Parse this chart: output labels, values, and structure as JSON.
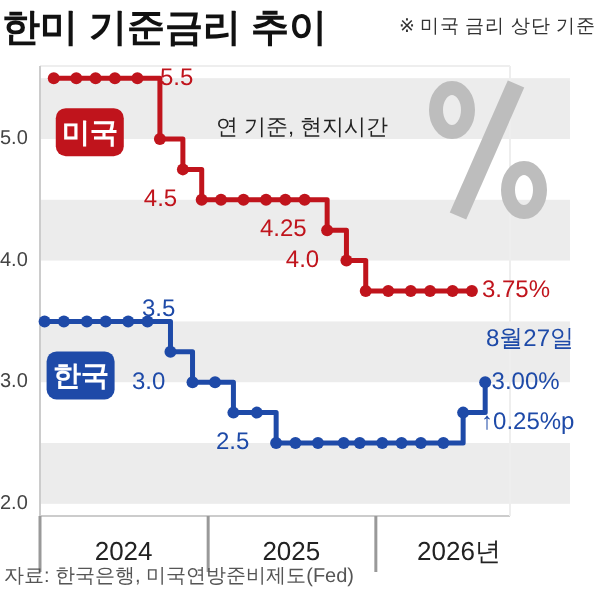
{
  "chart_data": {
    "type": "step",
    "title": "한미 기준금리 추이",
    "subtitle": "※ 미국 금리 상단 기준",
    "xlim": [
      "2024-01-01",
      "2026-10-20"
    ],
    "ylim": [
      1.9,
      5.6
    ],
    "yticks": [
      {
        "value": 2,
        "label": "2.0"
      },
      {
        "value": 3,
        "label": "3.0"
      },
      {
        "value": 4,
        "label": "4.0"
      },
      {
        "value": 5,
        "label": "5.0"
      }
    ],
    "xticks": [
      {
        "value": "2024-01-01",
        "label": null
      },
      {
        "value": "2024-07-01",
        "label": "2024"
      },
      {
        "value": "2025-01-01",
        "label": null
      },
      {
        "value": "2025-07-01",
        "label": "2025"
      },
      {
        "value": "2026-01-01",
        "label": null
      },
      {
        "value": "2026-07-01",
        "label": "2026년"
      }
    ],
    "marker": "circle",
    "grid": false,
    "bands": [
      {
        "axis": "y",
        "from": 2.0,
        "to": 2.5,
        "color": "#ececec"
      },
      {
        "axis": "y",
        "from": 3.0,
        "to": 3.5,
        "color": "#ececec"
      },
      {
        "axis": "y",
        "from": 4.0,
        "to": 4.5,
        "color": "#ececec"
      },
      {
        "axis": "y",
        "from": 5.0,
        "to": 5.5,
        "color": "#ececec"
      }
    ],
    "series": [
      {
        "name": "미국",
        "color": "#c0141c",
        "x": [
          "2024-01-31",
          "2024-03-20",
          "2024-05-01",
          "2024-06-12",
          "2024-07-31",
          "2024-09-18",
          "2024-11-07",
          "2024-12-18",
          "2025-01-29",
          "2025-03-19",
          "2025-05-07",
          "2025-06-18",
          "2025-07-30",
          "2025-09-17",
          "2025-10-29",
          "2025-12-10",
          "2026-01-28",
          "2026-03-18",
          "2026-04-29",
          "2026-06-17",
          "2026-07-29"
        ],
        "values": [
          5.5,
          5.5,
          5.5,
          5.5,
          5.5,
          5.0,
          4.75,
          4.5,
          4.5,
          4.5,
          4.5,
          4.5,
          4.5,
          4.25,
          4.0,
          3.75,
          3.75,
          3.75,
          3.75,
          3.75,
          3.75
        ]
      },
      {
        "name": "한국",
        "color": "#1e4aa8",
        "x": [
          "2024-01-11",
          "2024-02-22",
          "2024-04-12",
          "2024-05-23",
          "2024-07-11",
          "2024-08-22",
          "2024-10-11",
          "2024-11-28",
          "2025-01-16",
          "2025-02-25",
          "2025-04-17",
          "2025-05-29",
          "2025-07-10",
          "2025-08-28",
          "2025-10-23",
          "2025-11-27",
          "2026-01-15",
          "2026-02-26",
          "2026-04-09",
          "2026-05-28",
          "2026-07-10",
          "2026-08-27"
        ],
        "values": [
          3.5,
          3.5,
          3.5,
          3.5,
          3.5,
          3.5,
          3.25,
          3.0,
          3.0,
          2.75,
          2.75,
          2.5,
          2.5,
          2.5,
          2.5,
          2.5,
          2.5,
          2.5,
          2.5,
          2.5,
          2.75,
          3.0
        ]
      }
    ],
    "annotations": [
      {
        "text": "5.5",
        "x": "2024-09-18",
        "y": 5.5
      },
      {
        "text": "4.5",
        "x": "2024-08-14",
        "y": 4.5
      },
      "4.25",
      {
        "text": "4.0",
        "x": "2025-06-19",
        "y": 4.0
      },
      {
        "text": "3.75%",
        "x": "2026-08-20",
        "y": 3.75
      },
      {
        "text": "3.5",
        "x": "2024-08-10",
        "y": 3.6
      },
      {
        "text": "3.0",
        "x": "2024-07-19",
        "y": 3.0
      },
      {
        "text": "2.5",
        "x": "2025-01-18",
        "y": 2.5
      },
      "8월27일",
      {
        "text": "3.00%",
        "x": "2026-09-10",
        "y": 3.0
      },
      {
        "text": "↑0.25%p",
        "x": "2026-08-18",
        "y": 2.67
      },
      "연 기준, 현지시간",
      "자료: 한국은행, 미국연방준비제도(Fed)"
    ]
  }
}
